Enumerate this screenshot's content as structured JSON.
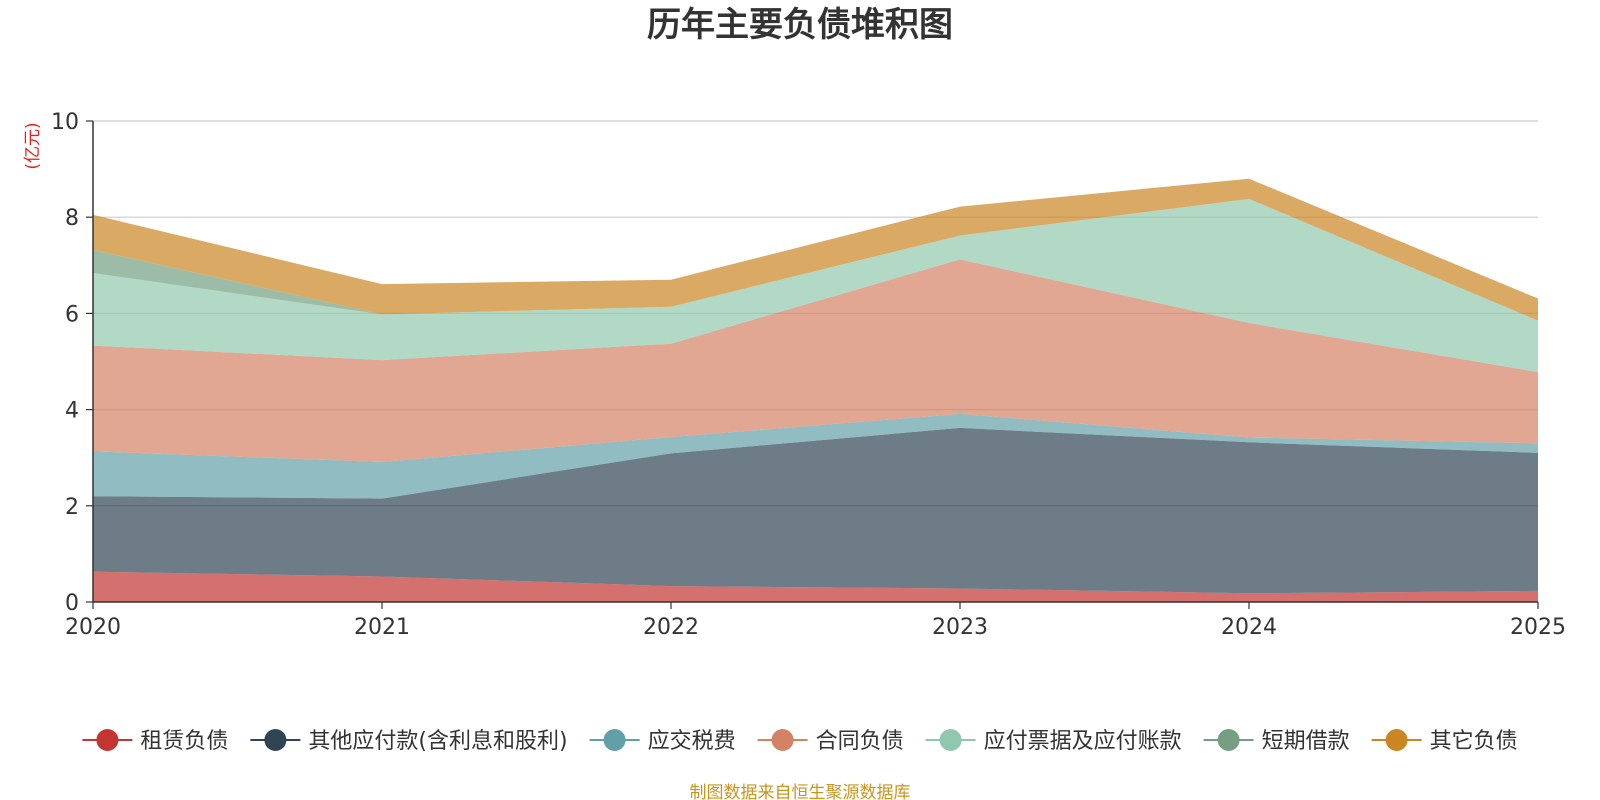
{
  "chart_data": {
    "type": "area",
    "stacked": true,
    "title": "历年主要负债堆积图",
    "unit_label": "(亿元)",
    "x": [
      "2020",
      "2021",
      "2022",
      "2023",
      "2024",
      "2025"
    ],
    "ylim": [
      0,
      10
    ],
    "yticks": [
      "0",
      "2",
      "4",
      "6",
      "8",
      "10"
    ],
    "grid": true,
    "legend_position": "bottom",
    "series": [
      {
        "name": "租赁负债",
        "color": "#c23531",
        "values": [
          0.63,
          0.53,
          0.33,
          0.28,
          0.18,
          0.23
        ]
      },
      {
        "name": "其他应付款(含利息和股利)",
        "color": "#2f4554",
        "values": [
          1.57,
          1.62,
          2.76,
          3.34,
          3.14,
          2.87
        ]
      },
      {
        "name": "应交税费",
        "color": "#61a0a8",
        "values": [
          0.93,
          0.76,
          0.34,
          0.29,
          0.1,
          0.2
        ]
      },
      {
        "name": "合同负债",
        "color": "#d48265",
        "values": [
          2.2,
          2.12,
          1.94,
          3.21,
          2.38,
          1.48
        ]
      },
      {
        "name": "应付票据及应付账款",
        "color": "#91c7ae",
        "values": [
          1.51,
          0.95,
          0.77,
          0.5,
          2.58,
          1.07
        ]
      },
      {
        "name": "短期借款",
        "color": "#749f83",
        "values": [
          0.48,
          0.0,
          0.0,
          0.0,
          0.0,
          0.0
        ]
      },
      {
        "name": "其它负债",
        "color": "#ca8622",
        "values": [
          0.73,
          0.63,
          0.56,
          0.6,
          0.42,
          0.46
        ]
      }
    ]
  },
  "footer": {
    "source": "制图数据来自恒生聚源数据库",
    "source_color": "#c8951e",
    "unit_color": "#e02020"
  }
}
